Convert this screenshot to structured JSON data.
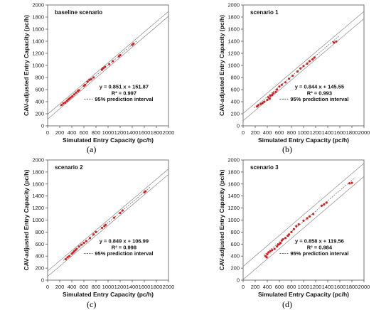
{
  "captions": [
    "(a)",
    "(b)",
    "(c)",
    "(d)"
  ],
  "chart_data": [
    {
      "type": "scatter",
      "title": "baseline scenario",
      "xlabel": "Simulated Entry Capacity (pc/h)",
      "ylabel": "CAV-adjusted Entry Capacity (pc/h)",
      "xlim": [
        0,
        2000
      ],
      "ylim": [
        0,
        2000
      ],
      "xticks": [
        "0",
        "200",
        "400",
        "600",
        "800",
        "1000",
        "1200",
        "1400",
        "1600",
        "1800",
        "2000"
      ],
      "yticks": [
        "0",
        "200",
        "400",
        "600",
        "800",
        "1000",
        "1200",
        "1400",
        "1600",
        "1800",
        "2000"
      ],
      "grid": false,
      "equation": "y = 0.851 x + 151.87",
      "r2": "R² = 0.997",
      "legend": "95% prediction interval",
      "fit": {
        "slope": 0.851,
        "intercept": 151.87
      },
      "pi_offset": 40,
      "x_range": [
        200,
        1480
      ],
      "points": [
        [
          230,
          345
        ],
        [
          260,
          372
        ],
        [
          290,
          385
        ],
        [
          320,
          410
        ],
        [
          340,
          435
        ],
        [
          360,
          450
        ],
        [
          380,
          470
        ],
        [
          410,
          490
        ],
        [
          440,
          520
        ],
        [
          470,
          550
        ],
        [
          500,
          575
        ],
        [
          520,
          590
        ],
        [
          600,
          660
        ],
        [
          620,
          680
        ],
        [
          660,
          730
        ],
        [
          690,
          760
        ],
        [
          720,
          770
        ],
        [
          760,
          800
        ],
        [
          900,
          930
        ],
        [
          920,
          955
        ],
        [
          950,
          975
        ],
        [
          1020,
          1020
        ],
        [
          1080,
          1070
        ],
        [
          1180,
          1150
        ],
        [
          1200,
          1170
        ],
        [
          1400,
          1340
        ],
        [
          1420,
          1360
        ]
      ]
    },
    {
      "type": "scatter",
      "title": "scenario 1",
      "xlabel": "Simulated Entry Capacity (pc/h)",
      "ylabel": "CAV-adjusted Entry Capacity (pc/h)",
      "xlim": [
        0,
        2000
      ],
      "ylim": [
        0,
        2000
      ],
      "xticks": [
        "0",
        "200",
        "400",
        "600",
        "800",
        "1000",
        "1200",
        "1400",
        "1600",
        "1800",
        "2000"
      ],
      "yticks": [
        "0",
        "200",
        "400",
        "600",
        "800",
        "1000",
        "1200",
        "1400",
        "1600",
        "1800",
        "2000"
      ],
      "grid": false,
      "equation": "y = 0.844 x + 145.55",
      "r2": "R² = 0.993",
      "legend": "95% prediction interval",
      "fit": {
        "slope": 0.844,
        "intercept": 145.55
      },
      "pi_offset": 60,
      "x_range": [
        180,
        1580
      ],
      "points": [
        [
          230,
          320
        ],
        [
          250,
          340
        ],
        [
          290,
          360
        ],
        [
          320,
          380
        ],
        [
          350,
          400
        ],
        [
          400,
          430
        ],
        [
          420,
          470
        ],
        [
          440,
          450
        ],
        [
          450,
          500
        ],
        [
          480,
          510
        ],
        [
          500,
          540
        ],
        [
          540,
          560
        ],
        [
          560,
          600
        ],
        [
          600,
          650
        ],
        [
          640,
          680
        ],
        [
          700,
          720
        ],
        [
          760,
          780
        ],
        [
          820,
          830
        ],
        [
          900,
          900
        ],
        [
          950,
          950
        ],
        [
          1000,
          990
        ],
        [
          1060,
          1030
        ],
        [
          1100,
          1070
        ],
        [
          1150,
          1100
        ],
        [
          1180,
          1130
        ],
        [
          1500,
          1380
        ],
        [
          1540,
          1395
        ]
      ]
    },
    {
      "type": "scatter",
      "title": "scenario 2",
      "xlabel": "Simulated Entry Capacity (pc/h)",
      "ylabel": "CAV-adjusted Entry Capacity (pc/h)",
      "xlim": [
        0,
        2000
      ],
      "ylim": [
        0,
        2000
      ],
      "xticks": [
        "0",
        "200",
        "400",
        "600",
        "800",
        "1000",
        "1200",
        "1400",
        "1600",
        "1800",
        "2000"
      ],
      "yticks": [
        "0",
        "200",
        "400",
        "600",
        "800",
        "1000",
        "1200",
        "1400",
        "1600",
        "1800",
        "2000"
      ],
      "grid": false,
      "equation": "y = 0.849 x + 106.99",
      "r2": "R² = 0.998",
      "legend": "95% prediction interval",
      "fit": {
        "slope": 0.849,
        "intercept": 106.99
      },
      "pi_offset": 45,
      "x_range": [
        260,
        1700
      ],
      "points": [
        [
          300,
          350
        ],
        [
          330,
          380
        ],
        [
          360,
          400
        ],
        [
          400,
          440
        ],
        [
          420,
          460
        ],
        [
          440,
          480
        ],
        [
          460,
          500
        ],
        [
          480,
          520
        ],
        [
          520,
          560
        ],
        [
          560,
          590
        ],
        [
          600,
          620
        ],
        [
          640,
          650
        ],
        [
          700,
          700
        ],
        [
          760,
          760
        ],
        [
          800,
          800
        ],
        [
          900,
          870
        ],
        [
          940,
          900
        ],
        [
          960,
          920
        ],
        [
          1100,
          1040
        ],
        [
          1200,
          1120
        ],
        [
          1240,
          1160
        ],
        [
          1600,
          1460
        ],
        [
          1620,
          1480
        ]
      ]
    },
    {
      "type": "scatter",
      "title": "scenario 3",
      "xlabel": "Simulated Entry Capacity (pc/h)",
      "ylabel": "CAV-adjusted Entry Capacity (pc/h)",
      "xlim": [
        0,
        2000
      ],
      "ylim": [
        0,
        2000
      ],
      "xticks": [
        "0",
        "200",
        "400",
        "600",
        "800",
        "1000",
        "1200",
        "1400",
        "1600",
        "1800",
        "2000"
      ],
      "yticks": [
        "0",
        "200",
        "400",
        "600",
        "800",
        "1000",
        "1200",
        "1400",
        "1600",
        "1800",
        "2000"
      ],
      "grid": false,
      "equation": "y = 0.858 x + 119.56",
      "r2": "R² = 0.984",
      "legend": "95% prediction interval",
      "fit": {
        "slope": 0.858,
        "intercept": 119.56
      },
      "pi_offset": 110,
      "x_range": [
        340,
        1850
      ],
      "points": [
        [
          370,
          400
        ],
        [
          390,
          380
        ],
        [
          400,
          430
        ],
        [
          420,
          460
        ],
        [
          450,
          480
        ],
        [
          480,
          500
        ],
        [
          520,
          520
        ],
        [
          560,
          560
        ],
        [
          580,
          590
        ],
        [
          600,
          600
        ],
        [
          620,
          620
        ],
        [
          640,
          660
        ],
        [
          660,
          680
        ],
        [
          700,
          700
        ],
        [
          740,
          740
        ],
        [
          760,
          760
        ],
        [
          800,
          800
        ],
        [
          840,
          850
        ],
        [
          880,
          900
        ],
        [
          920,
          930
        ],
        [
          1000,
          990
        ],
        [
          1060,
          1030
        ],
        [
          1100,
          1060
        ],
        [
          1160,
          1100
        ],
        [
          1300,
          1240
        ],
        [
          1340,
          1260
        ],
        [
          1380,
          1290
        ],
        [
          1760,
          1610
        ],
        [
          1800,
          1620
        ]
      ]
    }
  ]
}
